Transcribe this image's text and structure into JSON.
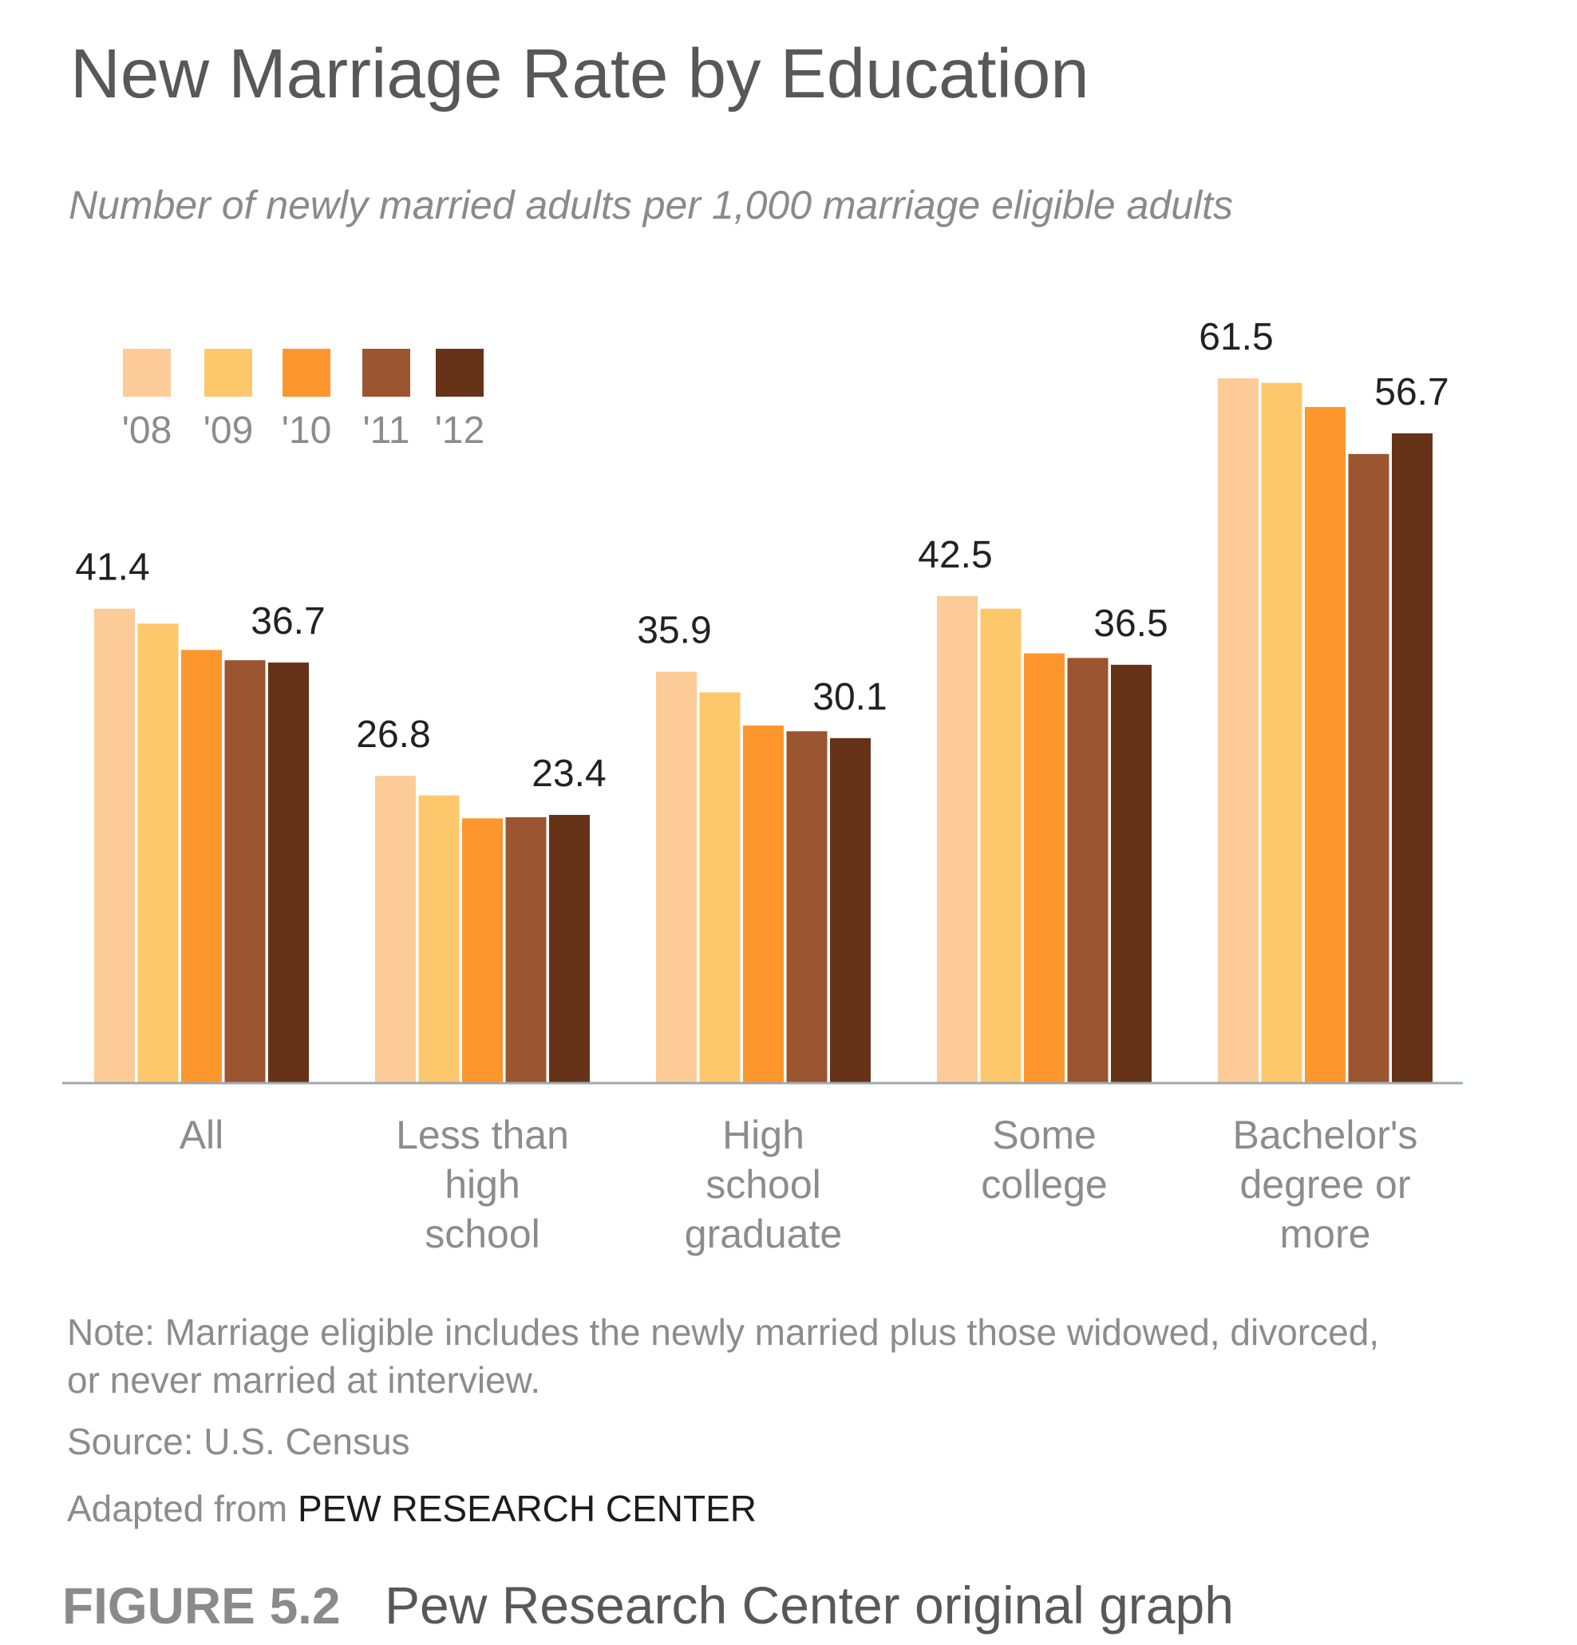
{
  "title": "New Marriage Rate by Education",
  "subtitle": "Number of newly married adults per 1,000 marriage eligible adults",
  "note_line1": "Note: Marriage eligible includes the newly married plus those widowed, divorced,",
  "note_line2": "or never married at interview.",
  "source": "Source: U.S. Census",
  "credit_prefix": "Adapted from ",
  "credit_org": "PEW RESEARCH CENTER",
  "figure_label": "FIGURE 5.2",
  "figure_caption": "Pew Research Center original graph",
  "chart_data": {
    "type": "bar",
    "title": "New Marriage Rate by Education",
    "subtitle": "Number of newly married adults per 1,000 marriage eligible adults",
    "xlabel": "",
    "ylabel": "",
    "ylim": [
      0,
      61.5
    ],
    "grid": false,
    "legend_position": "top-left",
    "categories": [
      [
        "All"
      ],
      [
        "Less than",
        "high",
        "school"
      ],
      [
        "High",
        "school",
        "graduate"
      ],
      [
        "Some",
        "college"
      ],
      [
        "Bachelor's",
        "degree or",
        "more"
      ]
    ],
    "series": [
      {
        "name": "'08",
        "color": "#fdcb98",
        "values": [
          41.4,
          26.8,
          35.9,
          42.5,
          61.5
        ]
      },
      {
        "name": "'09",
        "color": "#fdc86c",
        "values": [
          40.1,
          25.1,
          34.1,
          41.4,
          61.1
        ]
      },
      {
        "name": "'10",
        "color": "#fd962d",
        "values": [
          37.8,
          23.1,
          31.2,
          37.5,
          59.0
        ]
      },
      {
        "name": "'11",
        "color": "#9b5530",
        "values": [
          36.9,
          23.2,
          30.7,
          37.1,
          54.9
        ]
      },
      {
        "name": "'12",
        "color": "#663218",
        "values": [
          36.7,
          23.4,
          30.1,
          36.5,
          56.7
        ]
      }
    ],
    "data_labels": [
      {
        "category_index": 0,
        "series_index": 0,
        "text": "41.4"
      },
      {
        "category_index": 0,
        "series_index": 4,
        "text": "36.7"
      },
      {
        "category_index": 1,
        "series_index": 0,
        "text": "26.8"
      },
      {
        "category_index": 1,
        "series_index": 4,
        "text": "23.4"
      },
      {
        "category_index": 2,
        "series_index": 0,
        "text": "35.9"
      },
      {
        "category_index": 2,
        "series_index": 4,
        "text": "30.1"
      },
      {
        "category_index": 3,
        "series_index": 0,
        "text": "42.5"
      },
      {
        "category_index": 3,
        "series_index": 4,
        "text": "36.5"
      },
      {
        "category_index": 4,
        "series_index": 0,
        "text": "61.5"
      },
      {
        "category_index": 4,
        "series_index": 4,
        "text": "56.7"
      }
    ]
  },
  "colors": {
    "title": "#58585a",
    "muted_text": "#8c8c8c",
    "axis": "#a0a8b0"
  }
}
